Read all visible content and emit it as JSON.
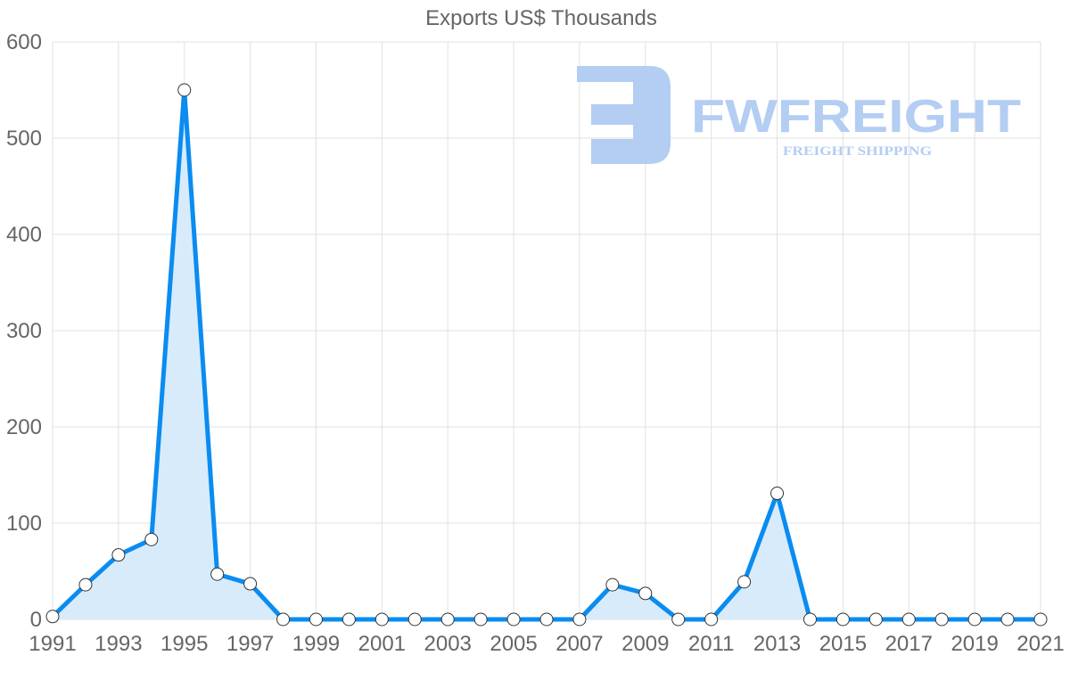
{
  "title": "Exports US$ Thousands",
  "watermark": {
    "brand": "FWFREIGHT",
    "tagline": "FREIGHT SHIPPING",
    "color": "#b3cdf3"
  },
  "colors": {
    "line": "#0a8cf0",
    "fill": "#d6eafb",
    "point_fill": "#ffffff",
    "point_stroke": "#333333",
    "grid": "#e1e1e1",
    "text": "#666666"
  },
  "chart_data": {
    "type": "line",
    "title": "Exports US$ Thousands",
    "xlabel": "",
    "ylabel": "",
    "x": [
      1991,
      1992,
      1993,
      1994,
      1995,
      1996,
      1997,
      1998,
      1999,
      2000,
      2001,
      2002,
      2003,
      2004,
      2005,
      2006,
      2007,
      2008,
      2009,
      2010,
      2011,
      2012,
      2013,
      2014,
      2015,
      2016,
      2017,
      2018,
      2019,
      2020,
      2021
    ],
    "series": [
      {
        "name": "Exports US$ Thousands",
        "values": [
          3,
          36,
          67,
          83,
          550,
          47,
          37,
          0,
          0,
          0,
          0,
          0,
          0,
          0,
          0,
          0,
          0,
          36,
          27,
          0,
          0,
          39,
          131,
          0,
          0,
          0,
          0,
          0,
          0,
          0,
          0
        ]
      }
    ],
    "x_tick_labels": [
      "1991",
      "1993",
      "1995",
      "1997",
      "1999",
      "2001",
      "2003",
      "2005",
      "2007",
      "2009",
      "2011",
      "2013",
      "2015",
      "2017",
      "2019",
      "2021"
    ],
    "y_tick_labels": [
      "0",
      "100",
      "200",
      "300",
      "400",
      "500",
      "600"
    ],
    "ylim": [
      0,
      600
    ],
    "grid": true,
    "legend": "none",
    "filled": true
  }
}
